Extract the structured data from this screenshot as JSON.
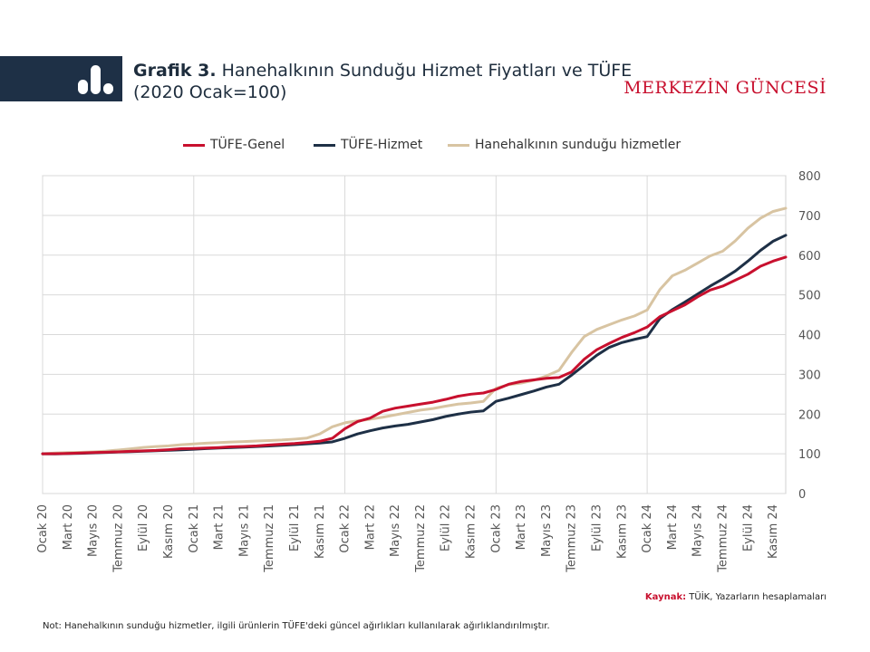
{
  "header": {
    "title_bold": "Grafik 3.",
    "title_rest": " Hanehalkının Sunduğu Hizmet Fiyatları ve TÜFE",
    "subtitle": "(2020 Ocak=100)",
    "brand": "MERKEZİN GÜNCESİ"
  },
  "footer": {
    "source_label": "Kaynak:",
    "source_text": " TÜİK, Yazarların hesaplamaları",
    "note": "Not: Hanehalkının sunduğu hizmetler, ilgili ürünlerin TÜFE'deki güncel ağırlıkları kullanılarak ağırlıklandırılmıştır."
  },
  "chart_data": {
    "type": "line",
    "y_axis_position": "right",
    "ylim": [
      0,
      800
    ],
    "yticks": [
      0,
      100,
      200,
      300,
      400,
      500,
      600,
      700,
      800
    ],
    "grid": true,
    "legend_position": "top",
    "x_ticks": [
      "Ocak 20",
      "Mart 20",
      "Mayıs 20",
      "Temmuz 20",
      "Eylül 20",
      "Kasım 20",
      "Ocak 21",
      "Mart 21",
      "Mayıs 21",
      "Temmuz 21",
      "Eylül 21",
      "Kasım 21",
      "Ocak 22",
      "Mart 22",
      "Mayıs 22",
      "Temmuz 22",
      "Eylül 22",
      "Kasım 22",
      "Ocak 23",
      "Mart 23",
      "Mayıs 23",
      "Temmuz 23",
      "Eylül 23",
      "Kasım 23",
      "Ocak 24",
      "Mart 24",
      "Mayıs 24",
      "Temmuz 24",
      "Eylül 24",
      "Kasım 24"
    ],
    "series": [
      {
        "name": "TÜFE-Genel",
        "color": "#c8102e",
        "values": [
          100,
          100.4,
          101,
          101.9,
          103,
          104,
          104.9,
          106.3,
          107.5,
          108.5,
          110.3,
          112.7,
          113.5,
          114.6,
          115.8,
          117.6,
          118.6,
          120,
          122.1,
          124.1,
          125.9,
          128.5,
          131.5,
          139,
          163,
          181,
          190,
          207,
          215,
          220,
          225,
          230,
          237,
          245,
          250,
          253,
          262,
          275,
          282,
          286,
          290,
          292,
          306,
          338,
          362,
          378,
          393,
          405,
          419,
          445,
          460,
          475,
          495,
          512,
          522,
          537,
          552,
          572,
          585,
          595
        ]
      },
      {
        "name": "TÜFE-Hizmet",
        "color": "#1e3046",
        "values": [
          100,
          99.8,
          100.6,
          101.2,
          102.3,
          103.4,
          104.5,
          105.5,
          106.7,
          107.6,
          108.9,
          110,
          111.5,
          113,
          114.5,
          115.6,
          116.8,
          118.2,
          119.7,
          121.5,
          123.2,
          125,
          127,
          130,
          139,
          150,
          158,
          165,
          170,
          174,
          180,
          186,
          194,
          200,
          205,
          208,
          232,
          240,
          249,
          258,
          268,
          275,
          298,
          323,
          348,
          368,
          380,
          388,
          395,
          440,
          463,
          482,
          502,
          522,
          540,
          560,
          585,
          612,
          635,
          650
        ]
      },
      {
        "name": "Hanehalkının sunduğu hizmetler",
        "color": "#d8c4a2",
        "values": [
          100,
          102.1,
          103,
          103.7,
          104.9,
          106.6,
          109.5,
          112.5,
          115.9,
          118.3,
          119.9,
          122.7,
          124.7,
          126.7,
          128.3,
          129.7,
          130.8,
          132.3,
          133.3,
          134.7,
          136.9,
          139.7,
          150,
          168,
          178,
          183,
          187,
          192,
          198,
          204,
          210,
          214,
          220,
          225,
          228,
          232,
          265,
          274,
          278,
          285,
          296,
          310,
          355,
          395,
          413,
          425,
          437,
          447,
          462,
          513,
          548,
          562,
          580,
          598,
          610,
          636,
          668,
          693,
          710,
          718
        ]
      }
    ]
  }
}
